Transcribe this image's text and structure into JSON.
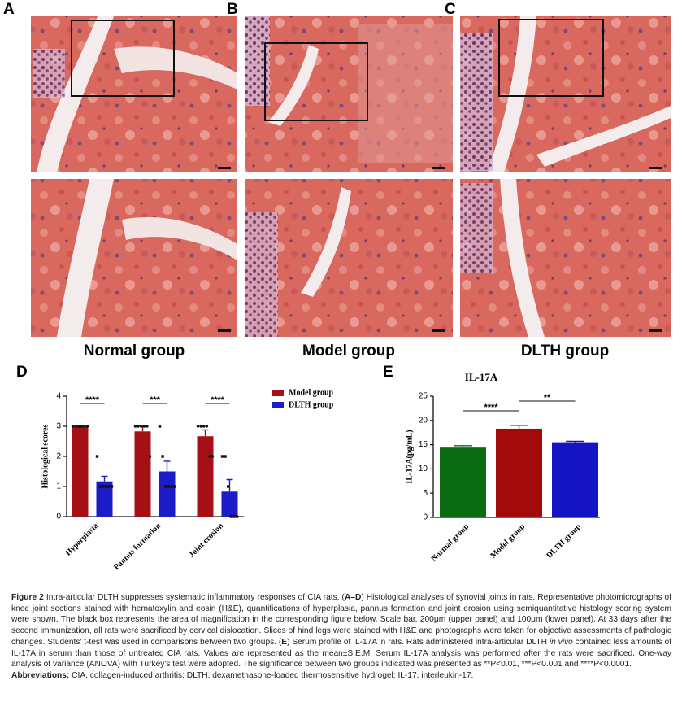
{
  "panel_labels": [
    "A",
    "B",
    "C",
    "D",
    "E"
  ],
  "group_labels": [
    "Normal group",
    "Model group",
    "DLTH group"
  ],
  "chart_data": [
    {
      "type": "bar",
      "ylabel": "Histological scores",
      "categories": [
        "Hyperplasia",
        "Pannus formation",
        "Joint erosion"
      ],
      "series": [
        {
          "name": "Model group",
          "color": "#a50f15",
          "values": [
            3,
            2.83,
            2.67
          ],
          "errors": [
            0,
            0.17,
            0.21
          ],
          "points": [
            [
              3,
              3,
              3,
              3,
              3,
              3
            ],
            [
              3,
              3,
              3,
              3,
              3,
              2
            ],
            [
              3,
              3,
              3,
              3,
              2,
              2
            ]
          ]
        },
        {
          "name": "DLTH group",
          "color": "#1c1cc8",
          "values": [
            1.17,
            1.5,
            0.83
          ],
          "errors": [
            0.17,
            0.34,
            0.4
          ],
          "points": [
            [
              2,
              1,
              1,
              1,
              1,
              1
            ],
            [
              3,
              2,
              1,
              1,
              1,
              1
            ],
            [
              2,
              2,
              1,
              0,
              0,
              0
            ]
          ]
        }
      ],
      "ylim": [
        0,
        4
      ],
      "yticks": [
        0,
        1,
        2,
        3,
        4
      ],
      "significance": [
        "****",
        "***",
        "****"
      ],
      "legend": "upper right"
    },
    {
      "type": "bar",
      "title": "IL-17A",
      "ylabel": "IL-17A(pg/mL)",
      "categories": [
        "Normal group",
        "Model group",
        "DLTH group"
      ],
      "values": [
        14.4,
        18.3,
        15.5
      ],
      "errors": [
        0.4,
        0.7,
        0.2
      ],
      "colors": [
        "#0b6b12",
        "#a30b0b",
        "#1414c4"
      ],
      "ylim": [
        0,
        25
      ],
      "yticks": [
        0,
        5,
        10,
        15,
        20,
        25
      ],
      "significance": [
        {
          "groups": [
            0,
            1
          ],
          "label": "****"
        },
        {
          "groups": [
            1,
            2
          ],
          "label": "**"
        }
      ]
    }
  ],
  "caption": {
    "parts": [
      "Figure 2",
      " Intra-articular DLTH suppresses systematic inflammatory responses of CIA rats. (",
      "A–D",
      ") Histological analyses of synovial joints in rats. Representative photomicrographs of knee joint sections stained with hematoxylin and eosin (H&E), quantifications of hyperplasia, pannus formation and joint erosion using semiquantitative histology scoring system were shown. The black box represents the area of magnification in the corresponding figure below. Scale bar, 200μm (upper panel) and 100μm (lower panel). At 33 days after the second immunization, all rats were sacrificed by cervical dislocation. Slices of hind legs were stained with H&E and photographs were taken for objective assessments of pathologic changes. Students' t-test was used in comparisons between two groups. (",
      "E",
      ") Serum profile of IL-17A in rats. Rats administered intra-articular DLTH ",
      "in vivo",
      " contained less amounts of IL-17A in serum than those of untreated CIA rats. Values are represented as the mean±S.E.M. Serum IL-17A analysis was performed after the rats were sacrificed. One-way analysis of variance (ANOVA) with Turkey's test were adopted. The significance between two groups indicated was presented as **P<0.01, ***P<0.001 and ****P<0.0001."
    ],
    "abbreviations": [
      "Abbreviations:",
      " CIA, collagen-induced arthritis; DLTH, dexamethasone-loaded thermosensitive hydrogel; IL-17, interleukin-17."
    ]
  }
}
